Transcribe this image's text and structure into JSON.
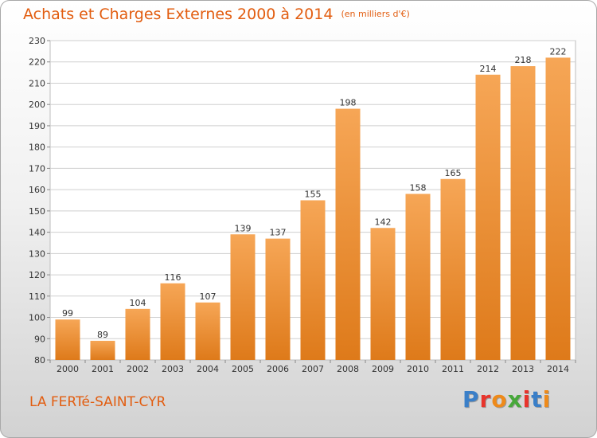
{
  "header": {
    "title": "Achats et Charges Externes 2000 à 2014",
    "subtitle": "(en milliers d'€)"
  },
  "footer": {
    "city": "LA FERTé-SAINT-CYR",
    "brand": {
      "text": "Proxiti",
      "letter_colors": [
        "#3a7fc8",
        "#e8342c",
        "#ee8a1a",
        "#47a83a",
        "#e8342c",
        "#3a7fc8",
        "#ee8a1a"
      ]
    }
  },
  "colors": {
    "bar_top": "#f6a656",
    "bar_bottom": "#de7a1a",
    "title": "#e25d10",
    "grid": "#cfcfcf",
    "axis_text": "#333333"
  },
  "chart_data": {
    "type": "bar",
    "categories": [
      "2000",
      "2001",
      "2002",
      "2003",
      "2004",
      "2005",
      "2006",
      "2007",
      "2008",
      "2009",
      "2010",
      "2011",
      "2012",
      "2013",
      "2014"
    ],
    "values": [
      99,
      89,
      104,
      116,
      107,
      139,
      137,
      155,
      198,
      142,
      158,
      165,
      214,
      218,
      222
    ],
    "ylim": [
      80,
      230
    ],
    "yticks": [
      80,
      90,
      100,
      110,
      120,
      130,
      140,
      150,
      160,
      170,
      180,
      190,
      200,
      210,
      220,
      230
    ],
    "grid": true,
    "data_labels": true
  }
}
